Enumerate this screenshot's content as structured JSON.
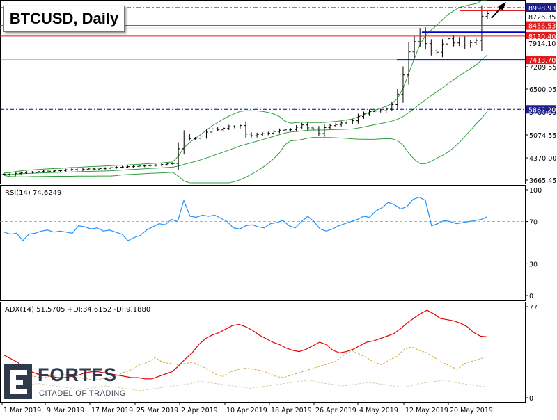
{
  "chart_title": "BTCUSD, Daily",
  "brand": {
    "name": "FORTFS",
    "tagline": "CITADEL OF TRADING"
  },
  "colors": {
    "red_level": "#e31b1b",
    "blue_level": "#0000cc",
    "bands": "#2e9e3a",
    "rsi": "#1e90ff",
    "adx": "#e00000",
    "di_plus": "#c8a030",
    "di_minus": "#d8c89a"
  },
  "chart_data": [
    {
      "type": "candlestick",
      "title": "BTCUSD, Daily",
      "x_ticks": [
        "1 Mar 2019",
        "9 Mar 2019",
        "17 Mar 2019",
        "25 Mar 2019",
        "2 Apr 2019",
        "10 Apr 2019",
        "18 Apr 2019",
        "26 Apr 2019",
        "4 May 2019",
        "12 May 2019",
        "20 May 2019"
      ],
      "y_ticks": [
        "7209.55",
        "6500.05",
        "5780.55",
        "5074.55",
        "4370.00",
        "3665.45"
      ],
      "price_labels": [
        {
          "value": "8998.93",
          "style": "dash-dot-blue"
        },
        {
          "value": "8726.35",
          "style": "plain"
        },
        {
          "value": "8456.53",
          "style": "red"
        },
        {
          "value": "8130.40",
          "style": "red"
        },
        {
          "value": "7914.10",
          "style": "plain"
        },
        {
          "value": "7413.70",
          "style": "red"
        },
        {
          "value": "5862.20",
          "style": "dash-dot-blue"
        }
      ],
      "levels": {
        "red": [
          8998.93,
          8456.53,
          8130.4,
          7413.7
        ],
        "blue_horizontal": [
          8250,
          7413.7
        ],
        "dash_dot": [
          8998.93,
          5862.2
        ]
      },
      "closes": [
        3850,
        3830,
        3880,
        3900,
        3920,
        3910,
        3935,
        3950,
        3945,
        3960,
        3965,
        3990,
        4000,
        3985,
        4010,
        4020,
        4015,
        4030,
        4040,
        4060,
        4070,
        4080,
        4090,
        4100,
        4110,
        4120,
        4130,
        4140,
        4160,
        4180,
        4190,
        4650,
        5040,
        4960,
        4970,
        5040,
        5160,
        5260,
        5230,
        5280,
        5330,
        5320,
        5360,
        5100,
        5050,
        5090,
        5110,
        5130,
        5180,
        5220,
        5230,
        5240,
        5310,
        5380,
        5290,
        5260,
        5120,
        5300,
        5360,
        5390,
        5440,
        5470,
        5510,
        5640,
        5720,
        5790,
        5810,
        5820,
        5890,
        6010,
        6340,
        6950,
        7650,
        7960,
        8230,
        7900,
        7680,
        7640,
        7890,
        8050,
        7920,
        8010,
        7860,
        7930,
        8000,
        8740,
        8820
      ]
    },
    {
      "type": "line",
      "title": "RSI(14) 74.6249",
      "y_ticks": [
        "100",
        "70",
        "30",
        "0"
      ],
      "values": [
        60,
        58,
        59,
        52,
        58,
        59,
        61,
        62,
        60,
        61,
        60,
        59,
        66,
        65,
        63,
        64,
        61,
        62,
        60,
        58,
        52,
        55,
        57,
        62,
        65,
        68,
        67,
        72,
        70,
        90,
        75,
        74,
        76,
        75,
        76,
        73,
        70,
        64,
        63,
        66,
        67,
        65,
        64,
        68,
        69,
        71,
        66,
        64,
        70,
        75,
        70,
        63,
        61,
        63,
        66,
        68,
        70,
        72,
        75,
        74,
        80,
        83,
        88,
        86,
        82,
        84,
        91,
        93,
        90,
        66,
        68,
        71,
        70,
        68,
        69,
        70,
        71,
        72,
        74.6249
      ]
    },
    {
      "type": "line",
      "title": "ADX(14) 51.5705 +DI:34.6152 -DI:9.1880",
      "y_ticks": [
        "77",
        "0"
      ],
      "series": [
        {
          "name": "ADX(14)",
          "values": [
            36,
            33,
            30,
            25,
            22,
            20,
            19,
            18,
            17,
            17,
            18,
            19,
            21,
            22,
            22,
            21,
            20,
            19,
            18,
            17,
            17,
            16,
            16,
            18,
            20,
            22,
            27,
            33,
            38,
            45,
            50,
            53,
            55,
            58,
            61,
            62,
            60,
            57,
            53,
            50,
            47,
            45,
            42,
            40,
            39,
            41,
            44,
            47,
            45,
            40,
            38,
            39,
            41,
            44,
            47,
            48,
            50,
            52,
            54,
            58,
            63,
            67,
            71,
            74,
            71,
            67,
            66,
            65,
            63,
            60,
            55,
            52,
            51.5705
          ]
        },
        {
          "name": "+DI",
          "values": [
            15,
            18,
            20,
            19,
            18,
            17,
            18,
            19,
            20,
            18,
            17,
            16,
            15,
            16,
            17,
            19,
            22,
            24,
            28,
            30,
            34,
            30,
            29,
            28,
            29,
            30,
            27,
            24,
            20,
            18,
            22,
            24,
            25,
            24,
            23,
            21,
            18,
            17,
            19,
            21,
            23,
            25,
            27,
            29,
            31,
            36,
            40,
            37,
            34,
            30,
            28,
            32,
            35,
            41,
            43,
            40,
            38,
            34,
            30,
            27,
            24,
            29,
            31,
            33,
            34.6152
          ]
        },
        {
          "name": "-DI",
          "values": [
            8,
            9,
            10,
            11,
            12,
            11,
            10,
            9,
            8,
            7,
            8,
            9,
            10,
            9,
            8,
            7,
            6,
            7,
            8,
            9,
            10,
            11,
            12,
            14,
            13,
            12,
            11,
            10,
            9,
            8,
            9,
            10,
            11,
            12,
            13,
            14,
            15,
            13,
            12,
            11,
            10,
            11,
            12,
            13,
            12,
            11,
            10,
            9,
            10,
            12,
            13,
            14,
            15,
            13,
            12,
            11,
            10,
            9.188
          ]
        }
      ]
    }
  ]
}
